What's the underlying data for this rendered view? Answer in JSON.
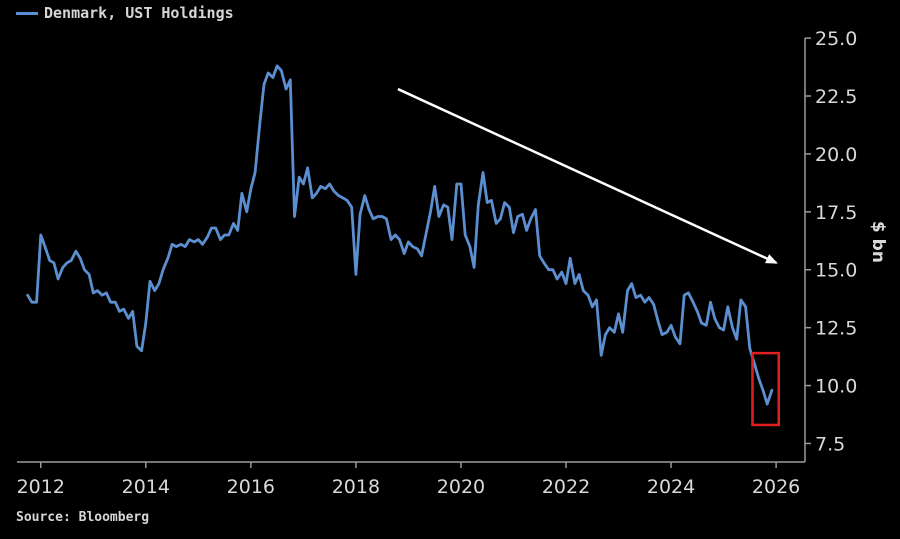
{
  "legend": {
    "label": "Denmark, UST Holdings"
  },
  "source": "Source: Bloomberg",
  "colors": {
    "series": "#5b8fd0",
    "arrow": "#ffffff",
    "highlight": "#e02020",
    "axis": "#9a9a9a",
    "background": "#000000"
  },
  "chart_data": {
    "type": "line",
    "title": "",
    "ylabel": "$ bn",
    "xlim": [
      2011.7,
      2026.55
    ],
    "ylim": [
      6.7,
      25.35
    ],
    "x_ticks": [
      2012,
      2014,
      2016,
      2018,
      2020,
      2022,
      2024,
      2026
    ],
    "y_ticks": [
      7.5,
      10.0,
      12.5,
      15.0,
      17.5,
      20.0,
      22.5,
      25.0
    ],
    "series": [
      {
        "name": "Denmark, UST Holdings",
        "points": [
          [
            2011.75,
            13.9
          ],
          [
            2011.83,
            13.6
          ],
          [
            2011.92,
            13.6
          ],
          [
            2012.0,
            16.5
          ],
          [
            2012.08,
            16.0
          ],
          [
            2012.17,
            15.4
          ],
          [
            2012.25,
            15.3
          ],
          [
            2012.33,
            14.6
          ],
          [
            2012.42,
            15.1
          ],
          [
            2012.5,
            15.3
          ],
          [
            2012.58,
            15.4
          ],
          [
            2012.67,
            15.8
          ],
          [
            2012.75,
            15.5
          ],
          [
            2012.83,
            15.0
          ],
          [
            2012.92,
            14.8
          ],
          [
            2013.0,
            14.0
          ],
          [
            2013.08,
            14.1
          ],
          [
            2013.17,
            13.9
          ],
          [
            2013.25,
            14.0
          ],
          [
            2013.33,
            13.6
          ],
          [
            2013.42,
            13.6
          ],
          [
            2013.5,
            13.2
          ],
          [
            2013.58,
            13.3
          ],
          [
            2013.67,
            12.9
          ],
          [
            2013.75,
            13.2
          ],
          [
            2013.83,
            11.7
          ],
          [
            2013.92,
            11.5
          ],
          [
            2014.0,
            12.7
          ],
          [
            2014.08,
            14.5
          ],
          [
            2014.17,
            14.1
          ],
          [
            2014.25,
            14.4
          ],
          [
            2014.33,
            15.0
          ],
          [
            2014.42,
            15.5
          ],
          [
            2014.5,
            16.1
          ],
          [
            2014.58,
            16.0
          ],
          [
            2014.67,
            16.1
          ],
          [
            2014.75,
            16.0
          ],
          [
            2014.83,
            16.3
          ],
          [
            2014.92,
            16.2
          ],
          [
            2015.0,
            16.3
          ],
          [
            2015.08,
            16.1
          ],
          [
            2015.17,
            16.4
          ],
          [
            2015.25,
            16.8
          ],
          [
            2015.33,
            16.8
          ],
          [
            2015.42,
            16.3
          ],
          [
            2015.5,
            16.5
          ],
          [
            2015.58,
            16.5
          ],
          [
            2015.67,
            17.0
          ],
          [
            2015.75,
            16.7
          ],
          [
            2015.83,
            18.3
          ],
          [
            2015.92,
            17.5
          ],
          [
            2016.0,
            18.5
          ],
          [
            2016.08,
            19.2
          ],
          [
            2016.17,
            21.3
          ],
          [
            2016.25,
            23.0
          ],
          [
            2016.33,
            23.5
          ],
          [
            2016.42,
            23.3
          ],
          [
            2016.5,
            23.8
          ],
          [
            2016.58,
            23.6
          ],
          [
            2016.67,
            22.8
          ],
          [
            2016.75,
            23.2
          ],
          [
            2016.83,
            17.3
          ],
          [
            2016.92,
            19.0
          ],
          [
            2017.0,
            18.7
          ],
          [
            2017.08,
            19.4
          ],
          [
            2017.17,
            18.1
          ],
          [
            2017.25,
            18.3
          ],
          [
            2017.33,
            18.6
          ],
          [
            2017.42,
            18.5
          ],
          [
            2017.5,
            18.7
          ],
          [
            2017.58,
            18.4
          ],
          [
            2017.67,
            18.2
          ],
          [
            2017.75,
            18.1
          ],
          [
            2017.83,
            18.0
          ],
          [
            2017.92,
            17.7
          ],
          [
            2018.0,
            14.8
          ],
          [
            2018.08,
            17.4
          ],
          [
            2018.17,
            18.2
          ],
          [
            2018.25,
            17.6
          ],
          [
            2018.33,
            17.2
          ],
          [
            2018.42,
            17.3
          ],
          [
            2018.5,
            17.3
          ],
          [
            2018.58,
            17.2
          ],
          [
            2018.67,
            16.3
          ],
          [
            2018.75,
            16.5
          ],
          [
            2018.83,
            16.3
          ],
          [
            2018.92,
            15.7
          ],
          [
            2019.0,
            16.2
          ],
          [
            2019.08,
            16.0
          ],
          [
            2019.17,
            15.9
          ],
          [
            2019.25,
            15.6
          ],
          [
            2019.33,
            16.5
          ],
          [
            2019.42,
            17.5
          ],
          [
            2019.5,
            18.6
          ],
          [
            2019.58,
            17.3
          ],
          [
            2019.67,
            17.8
          ],
          [
            2019.75,
            17.7
          ],
          [
            2019.83,
            16.3
          ],
          [
            2019.92,
            18.7
          ],
          [
            2020.0,
            18.7
          ],
          [
            2020.08,
            16.5
          ],
          [
            2020.17,
            16.0
          ],
          [
            2020.25,
            15.1
          ],
          [
            2020.33,
            17.8
          ],
          [
            2020.42,
            19.2
          ],
          [
            2020.5,
            17.9
          ],
          [
            2020.58,
            18.0
          ],
          [
            2020.67,
            17.0
          ],
          [
            2020.75,
            17.2
          ],
          [
            2020.83,
            17.9
          ],
          [
            2020.92,
            17.7
          ],
          [
            2021.0,
            16.6
          ],
          [
            2021.08,
            17.3
          ],
          [
            2021.17,
            17.4
          ],
          [
            2021.25,
            16.7
          ],
          [
            2021.33,
            17.2
          ],
          [
            2021.42,
            17.6
          ],
          [
            2021.5,
            15.6
          ],
          [
            2021.58,
            15.3
          ],
          [
            2021.67,
            15.0
          ],
          [
            2021.75,
            15.0
          ],
          [
            2021.83,
            14.6
          ],
          [
            2021.92,
            14.9
          ],
          [
            2022.0,
            14.4
          ],
          [
            2022.08,
            15.5
          ],
          [
            2022.17,
            14.4
          ],
          [
            2022.25,
            14.8
          ],
          [
            2022.33,
            14.1
          ],
          [
            2022.42,
            13.9
          ],
          [
            2022.5,
            13.4
          ],
          [
            2022.58,
            13.7
          ],
          [
            2022.67,
            11.3
          ],
          [
            2022.75,
            12.2
          ],
          [
            2022.83,
            12.5
          ],
          [
            2022.92,
            12.3
          ],
          [
            2023.0,
            13.1
          ],
          [
            2023.08,
            12.3
          ],
          [
            2023.17,
            14.1
          ],
          [
            2023.25,
            14.4
          ],
          [
            2023.33,
            13.8
          ],
          [
            2023.42,
            13.9
          ],
          [
            2023.5,
            13.6
          ],
          [
            2023.58,
            13.8
          ],
          [
            2023.67,
            13.5
          ],
          [
            2023.75,
            12.8
          ],
          [
            2023.83,
            12.2
          ],
          [
            2023.92,
            12.3
          ],
          [
            2024.0,
            12.6
          ],
          [
            2024.08,
            12.1
          ],
          [
            2024.17,
            11.8
          ],
          [
            2024.25,
            13.9
          ],
          [
            2024.33,
            14.0
          ],
          [
            2024.42,
            13.6
          ],
          [
            2024.5,
            13.2
          ],
          [
            2024.58,
            12.7
          ],
          [
            2024.67,
            12.6
          ],
          [
            2024.75,
            13.6
          ],
          [
            2024.83,
            12.9
          ],
          [
            2024.92,
            12.5
          ],
          [
            2025.0,
            12.4
          ],
          [
            2025.08,
            13.4
          ],
          [
            2025.17,
            12.5
          ],
          [
            2025.25,
            12.0
          ],
          [
            2025.33,
            13.7
          ],
          [
            2025.42,
            13.4
          ],
          [
            2025.5,
            11.6
          ],
          [
            2025.58,
            11.0
          ],
          [
            2025.67,
            10.3
          ],
          [
            2025.75,
            9.8
          ],
          [
            2025.83,
            9.2
          ],
          [
            2025.92,
            9.8
          ]
        ]
      }
    ],
    "arrow": {
      "from": [
        2018.8,
        22.8
      ],
      "to": [
        2026.0,
        15.3
      ]
    },
    "highlight_box": {
      "x0": 2025.55,
      "x1": 2026.05,
      "y0": 8.3,
      "y1": 11.4
    }
  }
}
